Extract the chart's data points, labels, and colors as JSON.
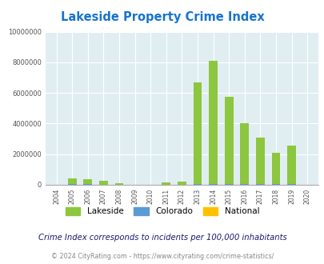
{
  "title": "Lakeside Property Crime Index",
  "years": [
    2004,
    2005,
    2006,
    2007,
    2008,
    2009,
    2010,
    2011,
    2012,
    2013,
    2014,
    2015,
    2016,
    2017,
    2018,
    2019,
    2020
  ],
  "lakeside": [
    0,
    400000,
    370000,
    280000,
    120000,
    0,
    0,
    180000,
    220000,
    6700000,
    8100000,
    5750000,
    4000000,
    3100000,
    2100000,
    2550000,
    0
  ],
  "colorado": [
    0,
    30000,
    30000,
    25000,
    20000,
    15000,
    12000,
    20000,
    25000,
    50000,
    60000,
    60000,
    55000,
    50000,
    45000,
    55000,
    0
  ],
  "national": [
    0,
    15000,
    15000,
    12000,
    10000,
    8000,
    7000,
    9000,
    10000,
    20000,
    25000,
    22000,
    20000,
    18000,
    17000,
    20000,
    0
  ],
  "lakeside_color": "#8dc63f",
  "colorado_color": "#5b9bd5",
  "national_color": "#ffc000",
  "bg_color": "#e0eef2",
  "title_color": "#1874cd",
  "ylim": [
    0,
    10000000
  ],
  "yticks": [
    0,
    2000000,
    4000000,
    6000000,
    8000000,
    10000000
  ],
  "footnote1": "Crime Index corresponds to incidents per 100,000 inhabitants",
  "footnote2": "© 2024 CityRating.com - https://www.cityrating.com/crime-statistics/",
  "bar_width": 0.55,
  "legend_labels": [
    "Lakeside",
    "Colorado",
    "National"
  ],
  "footnote1_color": "#1a1a6e",
  "footnote2_color": "#888888"
}
